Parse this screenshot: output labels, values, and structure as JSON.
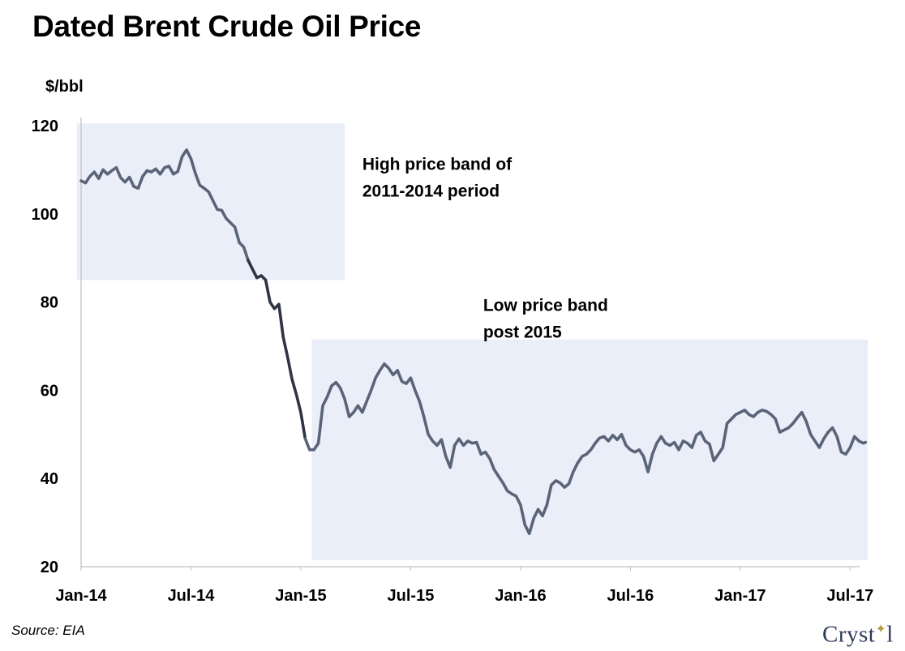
{
  "title": "Dated Brent Crude Oil Price",
  "unit_label": "$/bbl",
  "source": "Source: EIA",
  "logo_text": "Cryst",
  "logo_text_after": "l",
  "chart_data": {
    "type": "line",
    "title": "Dated Brent Crude Oil Price",
    "ylabel": "$/bbl",
    "xlabel": "",
    "ylim": [
      20,
      120
    ],
    "yticks": [
      20,
      40,
      60,
      80,
      100,
      120
    ],
    "xlim": [
      2014.0,
      2017.58
    ],
    "xticks": [
      {
        "x": 2014.0,
        "label": "Jan-14"
      },
      {
        "x": 2014.5,
        "label": "Jul-14"
      },
      {
        "x": 2015.0,
        "label": "Jan-15"
      },
      {
        "x": 2015.5,
        "label": "Jul-15"
      },
      {
        "x": 2016.0,
        "label": "Jan-16"
      },
      {
        "x": 2016.5,
        "label": "Jul-16"
      },
      {
        "x": 2017.0,
        "label": "Jan-17"
      },
      {
        "x": 2017.5,
        "label": "Jul-17"
      }
    ],
    "grid": false,
    "bands": [
      {
        "label": "High price band of 2011-2014 period",
        "x": [
          2013.98,
          2015.2
        ],
        "y": [
          85,
          120.5
        ],
        "color": "#e9eef8"
      },
      {
        "label": "Low price band post 2015",
        "x": [
          2015.05,
          2017.58
        ],
        "y": [
          21.5,
          71.5
        ],
        "color": "#e9eef8"
      }
    ],
    "annotations": [
      {
        "lines": [
          "High price band of",
          "2011-2014 period"
        ],
        "x": 2015.28,
        "y": 110
      },
      {
        "lines": [
          "Low price band",
          "post 2015"
        ],
        "x": 2015.83,
        "y": 78
      }
    ],
    "series": [
      {
        "color": "#5a6478",
        "dark_color": "#2e3345",
        "dark_range": [
          2014.77,
          2015.03
        ],
        "x": [
          2014.0,
          2014.02,
          2014.04,
          2014.06,
          2014.08,
          2014.1,
          2014.12,
          2014.14,
          2014.16,
          2014.18,
          2014.2,
          2014.22,
          2014.24,
          2014.26,
          2014.28,
          2014.3,
          2014.32,
          2014.34,
          2014.36,
          2014.38,
          2014.4,
          2014.42,
          2014.44,
          2014.46,
          2014.48,
          2014.5,
          2014.52,
          2014.54,
          2014.56,
          2014.58,
          2014.6,
          2014.62,
          2014.64,
          2014.66,
          2014.68,
          2014.7,
          2014.72,
          2014.74,
          2014.76,
          2014.78,
          2014.8,
          2014.82,
          2014.84,
          2014.86,
          2014.88,
          2014.9,
          2014.92,
          2014.94,
          2014.96,
          2014.98,
          2015.0,
          2015.02,
          2015.04,
          2015.06,
          2015.08,
          2015.1,
          2015.12,
          2015.14,
          2015.16,
          2015.18,
          2015.2,
          2015.22,
          2015.24,
          2015.26,
          2015.28,
          2015.3,
          2015.32,
          2015.34,
          2015.36,
          2015.38,
          2015.4,
          2015.42,
          2015.44,
          2015.46,
          2015.48,
          2015.5,
          2015.52,
          2015.54,
          2015.56,
          2015.58,
          2015.6,
          2015.62,
          2015.64,
          2015.66,
          2015.68,
          2015.7,
          2015.72,
          2015.74,
          2015.76,
          2015.78,
          2015.8,
          2015.82,
          2015.84,
          2015.86,
          2015.88,
          2015.9,
          2015.92,
          2015.94,
          2015.96,
          2015.98,
          2016.0,
          2016.02,
          2016.04,
          2016.06,
          2016.08,
          2016.1,
          2016.12,
          2016.14,
          2016.16,
          2016.18,
          2016.2,
          2016.22,
          2016.24,
          2016.26,
          2016.28,
          2016.3,
          2016.32,
          2016.34,
          2016.36,
          2016.38,
          2016.4,
          2016.42,
          2016.44,
          2016.46,
          2016.48,
          2016.5,
          2016.52,
          2016.54,
          2016.56,
          2016.58,
          2016.6,
          2016.62,
          2016.64,
          2016.66,
          2016.68,
          2016.7,
          2016.72,
          2016.74,
          2016.76,
          2016.78,
          2016.8,
          2016.82,
          2016.84,
          2016.86,
          2016.88,
          2016.9,
          2016.92,
          2016.94,
          2016.96,
          2016.98,
          2017.0,
          2017.02,
          2017.04,
          2017.06,
          2017.08,
          2017.1,
          2017.12,
          2017.14,
          2017.16,
          2017.18,
          2017.2,
          2017.22,
          2017.24,
          2017.26,
          2017.28,
          2017.3,
          2017.32,
          2017.34,
          2017.36,
          2017.38,
          2017.4,
          2017.42,
          2017.44,
          2017.46,
          2017.48,
          2017.5,
          2017.52,
          2017.54,
          2017.56,
          2017.57
        ],
        "y": [
          107.5,
          107.0,
          108.5,
          109.5,
          108.0,
          110.0,
          109.0,
          109.8,
          110.5,
          108.2,
          107.2,
          108.3,
          106.2,
          105.8,
          108.5,
          109.8,
          109.5,
          110.2,
          109.0,
          110.5,
          110.8,
          109.0,
          109.6,
          113.0,
          114.5,
          112.5,
          109.2,
          106.5,
          105.8,
          105.0,
          103.0,
          101.0,
          100.8,
          99.0,
          98.0,
          97.0,
          93.5,
          92.5,
          89.5,
          87.5,
          85.5,
          86.0,
          85.0,
          80.0,
          78.5,
          79.5,
          72.0,
          67.5,
          62.5,
          59.0,
          55.0,
          49.0,
          46.5,
          46.5,
          48.0,
          56.5,
          58.5,
          61.0,
          61.8,
          60.5,
          58.0,
          54.0,
          55.0,
          56.5,
          55.0,
          57.5,
          60.0,
          62.8,
          64.5,
          66.0,
          65.0,
          63.5,
          64.5,
          62.0,
          61.5,
          62.8,
          60.0,
          57.5,
          54.0,
          50.0,
          48.5,
          47.5,
          48.8,
          45.0,
          42.5,
          47.5,
          49.0,
          47.5,
          48.5,
          48.0,
          48.2,
          45.5,
          46.0,
          44.5,
          42.0,
          40.5,
          39.0,
          37.2,
          36.5,
          36.0,
          34.0,
          29.5,
          27.5,
          31.0,
          33.0,
          31.5,
          34.0,
          38.5,
          39.5,
          39.0,
          38.0,
          38.8,
          41.5,
          43.5,
          45.0,
          45.5,
          46.5,
          48.0,
          49.2,
          49.5,
          48.5,
          49.8,
          48.8,
          50.0,
          47.5,
          46.5,
          46.0,
          46.5,
          45.0,
          41.5,
          45.5,
          48.0,
          49.5,
          48.0,
          47.5,
          48.2,
          46.5,
          48.5,
          48.0,
          47.0,
          49.8,
          50.5,
          48.5,
          47.8,
          44.0,
          45.5,
          47.0,
          52.5,
          53.5,
          54.5,
          55.0,
          55.5,
          54.5,
          54.0,
          55.0,
          55.5,
          55.2,
          54.5,
          53.5,
          50.5,
          51.0,
          51.5,
          52.5,
          53.8,
          55.0,
          53.0,
          50.0,
          48.5,
          47.0,
          49.0,
          50.5,
          51.5,
          49.5,
          46.0,
          45.5,
          47.0,
          49.5,
          48.5,
          48.0,
          48.2
        ]
      }
    ]
  }
}
